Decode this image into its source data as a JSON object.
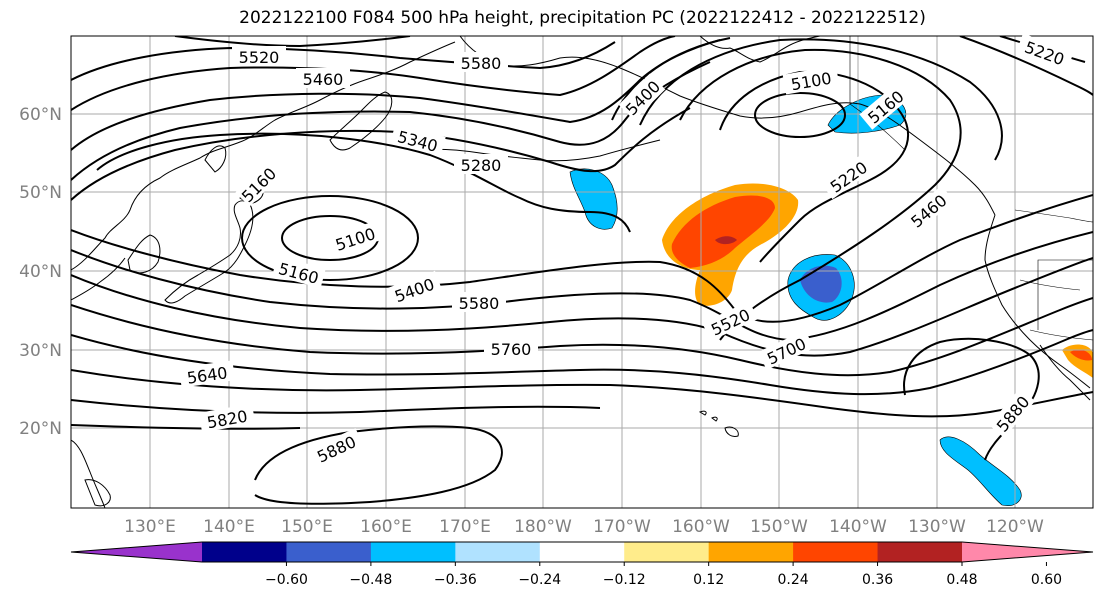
{
  "title": "2022122100 F084 500 hPa height, precipitation PC (2022122412 - 2022122512)",
  "lat_labels": [
    "60°N",
    "50°N",
    "40°N",
    "30°N",
    "20°N"
  ],
  "lon_labels": [
    "130°E",
    "140°E",
    "150°E",
    "160°E",
    "170°E",
    "180°W",
    "170°W",
    "160°W",
    "150°W",
    "140°W",
    "130°W",
    "120°W"
  ],
  "contour_labels": [
    "5520",
    "5580",
    "5460",
    "5400",
    "5100",
    "5160",
    "5340",
    "5280",
    "5220",
    "5160",
    "5100",
    "5160",
    "5400",
    "5580",
    "5520",
    "5760",
    "5700",
    "5640",
    "5820",
    "5880",
    "5880",
    "5460",
    "5220"
  ],
  "colorbar": {
    "colors": [
      "#9932cc",
      "#00008b",
      "#3a5fcd",
      "#00bfff",
      "#b0e2ff",
      "#ffffff",
      "#ffec8b",
      "#ffa500",
      "#ff4500",
      "#b22222",
      "#ff88aa"
    ],
    "ticks": [
      "−0.60",
      "−0.48",
      "−0.36",
      "−0.24",
      "−0.12",
      "0.12",
      "0.24",
      "0.36",
      "0.48",
      "0.60"
    ]
  }
}
